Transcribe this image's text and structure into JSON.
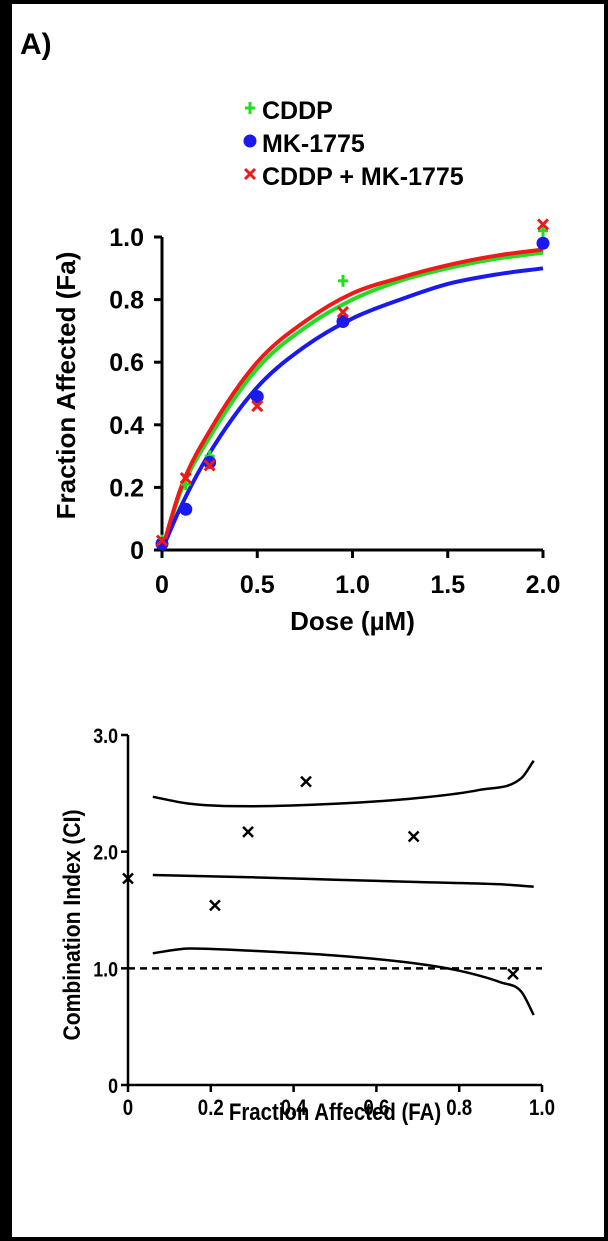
{
  "panel_label": "A)",
  "chart_data": [
    {
      "type": "scatter",
      "title": "",
      "xlabel": "Dose (µM)",
      "ylabel": "Fraction Affected (Fa)",
      "xlim": [
        0,
        2.0
      ],
      "ylim": [
        0,
        1.0
      ],
      "x_ticks": [
        "0",
        "0.5",
        "1.0",
        "1.5",
        "2.0"
      ],
      "y_ticks": [
        "0",
        "0.2",
        "0.4",
        "0.6",
        "0.8",
        "1.0"
      ],
      "legend_placement": "top",
      "series": [
        {
          "name": "CDDP",
          "color": "#22dd22",
          "marker": "plus",
          "x": [
            0,
            0.125,
            0.25,
            0.5,
            0.95,
            2.0
          ],
          "y": [
            0.03,
            0.21,
            0.3,
            0.48,
            0.86,
            1.02
          ],
          "curve": [
            [
              0,
              0.0
            ],
            [
              0.1,
              0.19
            ],
            [
              0.25,
              0.36
            ],
            [
              0.5,
              0.58
            ],
            [
              0.75,
              0.71
            ],
            [
              1.0,
              0.8
            ],
            [
              1.25,
              0.86
            ],
            [
              1.5,
              0.9
            ],
            [
              1.75,
              0.93
            ],
            [
              2.0,
              0.95
            ]
          ]
        },
        {
          "name": "MK-1775",
          "color": "#1a1aee",
          "marker": "circle",
          "x": [
            0,
            0.125,
            0.25,
            0.5,
            0.95,
            2.0
          ],
          "y": [
            0.02,
            0.13,
            0.28,
            0.49,
            0.73,
            0.98
          ],
          "curve": [
            [
              0,
              0.0
            ],
            [
              0.1,
              0.14
            ],
            [
              0.25,
              0.31
            ],
            [
              0.5,
              0.52
            ],
            [
              0.75,
              0.65
            ],
            [
              1.0,
              0.74
            ],
            [
              1.25,
              0.8
            ],
            [
              1.5,
              0.85
            ],
            [
              1.75,
              0.88
            ],
            [
              2.0,
              0.9
            ]
          ]
        },
        {
          "name": "CDDP + MK-1775",
          "color": "#ee1a1a",
          "marker": "x",
          "x": [
            0,
            0.125,
            0.25,
            0.5,
            0.95,
            2.0
          ],
          "y": [
            0.03,
            0.23,
            0.27,
            0.46,
            0.76,
            1.04
          ],
          "curve": [
            [
              0,
              0.0
            ],
            [
              0.1,
              0.2
            ],
            [
              0.25,
              0.38
            ],
            [
              0.5,
              0.6
            ],
            [
              0.75,
              0.73
            ],
            [
              1.0,
              0.82
            ],
            [
              1.25,
              0.87
            ],
            [
              1.5,
              0.91
            ],
            [
              1.75,
              0.94
            ],
            [
              2.0,
              0.96
            ]
          ]
        }
      ]
    },
    {
      "type": "scatter",
      "title": "",
      "xlabel": "Fraction Affected (FA)",
      "ylabel": "Combination Index (CI)",
      "xlim": [
        0,
        1.0
      ],
      "ylim": [
        0,
        3.0
      ],
      "x_ticks": [
        "0",
        "0.2",
        "0.4",
        "0.6",
        "0.8",
        "1.0"
      ],
      "y_ticks": [
        "0",
        "1.0",
        "2.0",
        "3.0"
      ],
      "reference_line": {
        "y": 1.0,
        "style": "dashed"
      },
      "points": {
        "marker": "x",
        "x": [
          0.0,
          0.21,
          0.29,
          0.43,
          0.69,
          0.93
        ],
        "y": [
          1.77,
          1.54,
          2.17,
          2.6,
          2.13,
          0.95
        ]
      },
      "curves": [
        {
          "role": "upper",
          "points": [
            [
              0.06,
              2.47
            ],
            [
              0.15,
              2.41
            ],
            [
              0.3,
              2.39
            ],
            [
              0.5,
              2.41
            ],
            [
              0.7,
              2.46
            ],
            [
              0.85,
              2.53
            ],
            [
              0.95,
              2.63
            ],
            [
              0.98,
              2.78
            ]
          ]
        },
        {
          "role": "center",
          "points": [
            [
              0.06,
              1.8
            ],
            [
              0.3,
              1.78
            ],
            [
              0.5,
              1.76
            ],
            [
              0.7,
              1.74
            ],
            [
              0.9,
              1.72
            ],
            [
              0.98,
              1.7
            ]
          ]
        },
        {
          "role": "lower",
          "points": [
            [
              0.06,
              1.13
            ],
            [
              0.15,
              1.17
            ],
            [
              0.3,
              1.15
            ],
            [
              0.5,
              1.11
            ],
            [
              0.7,
              1.04
            ],
            [
              0.8,
              0.98
            ],
            [
              0.9,
              0.88
            ],
            [
              0.95,
              0.8
            ],
            [
              0.98,
              0.6
            ]
          ]
        }
      ]
    }
  ]
}
